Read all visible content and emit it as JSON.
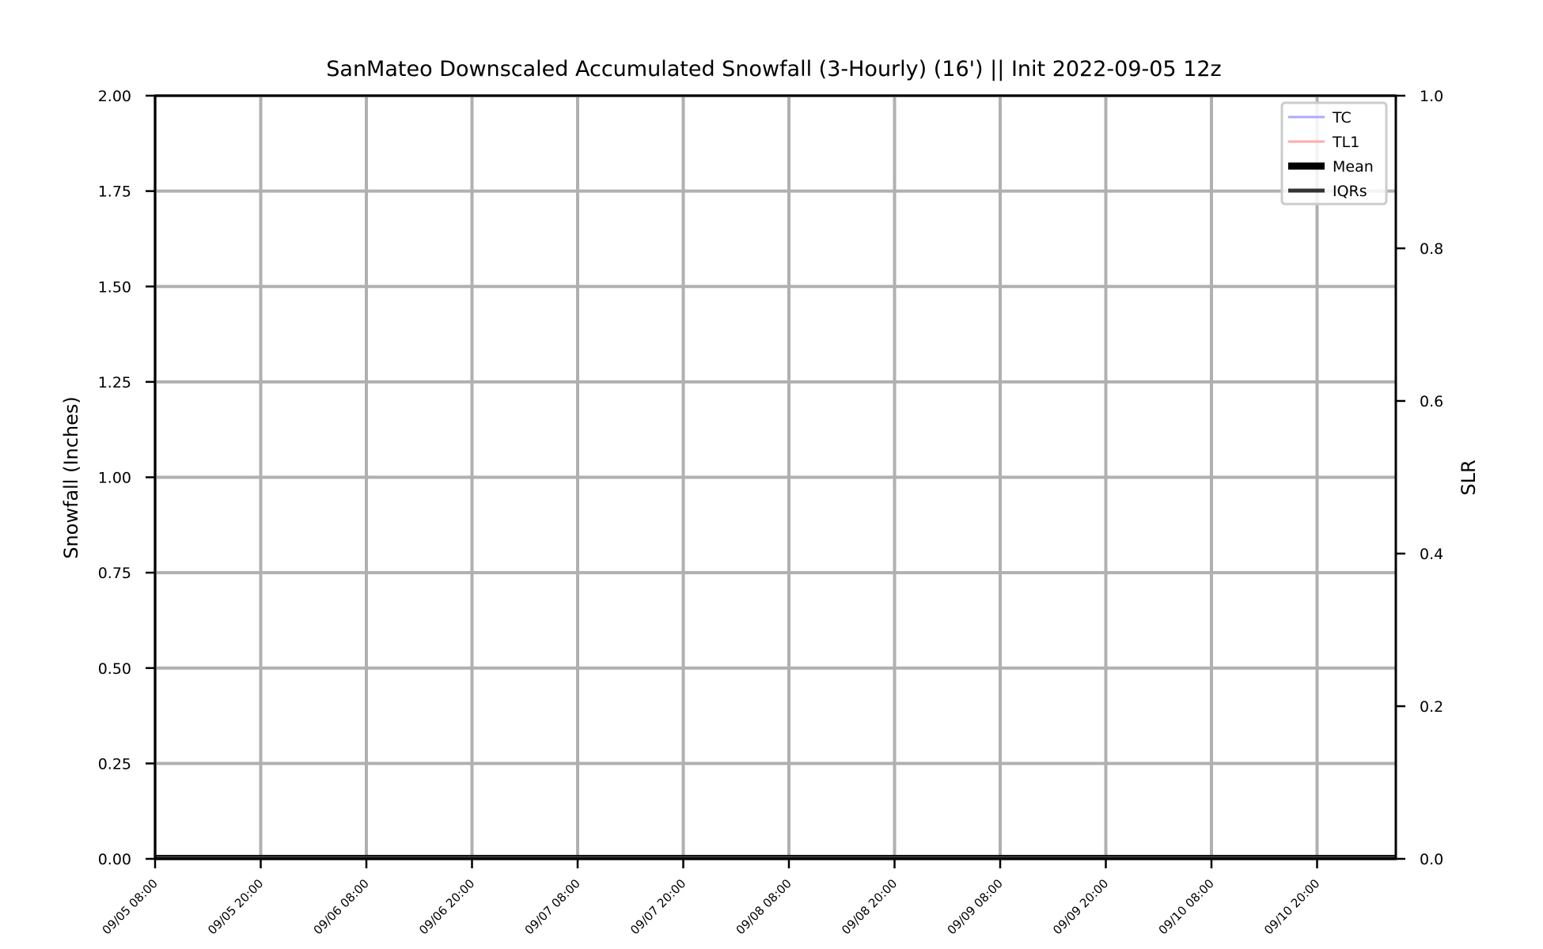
{
  "chart_data": {
    "type": "line",
    "title": "SanMateo Downscaled Accumulated Snowfall (3-Hourly) (16') || Init 2022-09-05 12z",
    "ylabel": "Snowfall (Inches)",
    "y2label": "SLR",
    "ylim": [
      0,
      2
    ],
    "y2lim": [
      0,
      1
    ],
    "yticks": [
      "0.00",
      "0.25",
      "0.50",
      "0.75",
      "1.00",
      "1.25",
      "1.50",
      "1.75",
      "2.00"
    ],
    "y2ticks": [
      "0.0",
      "0.2",
      "0.4",
      "0.6",
      "0.8",
      "1.0"
    ],
    "x": [
      "09/05 08:00",
      "09/05 20:00",
      "09/06 08:00",
      "09/06 20:00",
      "09/07 08:00",
      "09/07 20:00",
      "09/08 08:00",
      "09/08 20:00",
      "09/09 08:00",
      "09/09 20:00",
      "09/10 08:00",
      "09/10 20:00"
    ],
    "grid": true,
    "legend_position": "top-right",
    "series": [
      {
        "name": "TC",
        "color": "#aaaaff",
        "values": [
          0,
          0,
          0,
          0,
          0,
          0,
          0,
          0,
          0,
          0,
          0,
          0
        ]
      },
      {
        "name": "TL1",
        "color": "#ffaaaa",
        "values": [
          0,
          0,
          0,
          0,
          0,
          0,
          0,
          0,
          0,
          0,
          0,
          0
        ]
      },
      {
        "name": "Mean",
        "color": "#000000",
        "values": [
          0,
          0,
          0,
          0,
          0,
          0,
          0,
          0,
          0,
          0,
          0,
          0
        ]
      },
      {
        "name": "IQRs",
        "color": "#333333",
        "values": [
          0,
          0,
          0,
          0,
          0,
          0,
          0,
          0,
          0,
          0,
          0,
          0
        ]
      }
    ]
  }
}
